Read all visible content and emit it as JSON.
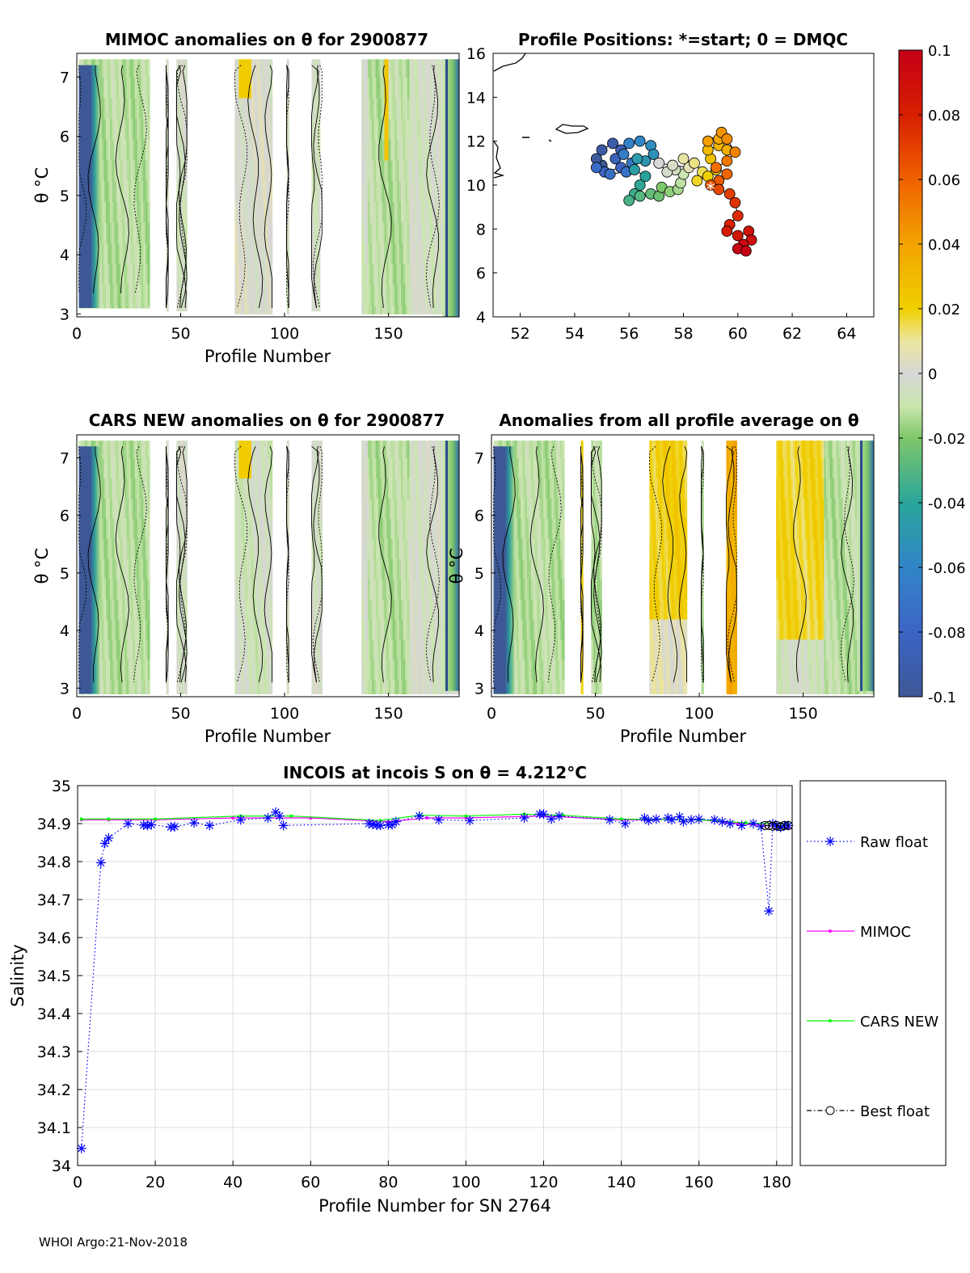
{
  "footer": "WHOI Argo:21-Nov-2018",
  "colors": {
    "raw": "#0000ff",
    "mimoc": "#ff00ff",
    "cars": "#00ff00",
    "best": "#000000",
    "grid": "#dcdcdc",
    "neutral": "#d6d6d6"
  },
  "panels": {
    "mimoc": {
      "title": "MIMOC anomalies on θ  for 2900877",
      "xlabel": "Profile Number",
      "ylabel": "θ °C",
      "xticks": [
        "0",
        "50",
        "100",
        "150"
      ],
      "yticks": [
        "3",
        "4",
        "5",
        "6",
        "7"
      ],
      "xlim": [
        0,
        184
      ],
      "ylim": [
        2.95,
        7.4
      ]
    },
    "positions": {
      "title": "Profile Positions: *=start; 0 = DMQC",
      "xticks": [
        "52",
        "54",
        "56",
        "58",
        "60",
        "62",
        "64"
      ],
      "yticks": [
        "4",
        "6",
        "8",
        "10",
        "12",
        "14",
        "16"
      ],
      "xlim": [
        51,
        65
      ],
      "ylim": [
        4,
        16
      ],
      "track": [
        [
          55.0,
          10.9
        ],
        [
          54.8,
          11.2
        ],
        [
          55.0,
          11.6
        ],
        [
          55.4,
          11.9
        ],
        [
          55.7,
          11.6
        ],
        [
          55.5,
          11.2
        ],
        [
          55.7,
          10.8
        ],
        [
          55.1,
          10.6
        ],
        [
          54.8,
          10.8
        ],
        [
          55.3,
          10.5
        ],
        [
          55.9,
          10.6
        ],
        [
          56.1,
          11.0
        ],
        [
          55.8,
          11.4
        ],
        [
          56.0,
          11.9
        ],
        [
          56.4,
          12.0
        ],
        [
          56.8,
          11.8
        ],
        [
          56.9,
          11.4
        ],
        [
          56.6,
          11.1
        ],
        [
          56.3,
          11.2
        ],
        [
          56.2,
          10.7
        ],
        [
          56.6,
          10.4
        ],
        [
          56.4,
          10.0
        ],
        [
          56.2,
          9.6
        ],
        [
          56.0,
          9.3
        ],
        [
          56.4,
          9.5
        ],
        [
          56.8,
          9.6
        ],
        [
          57.1,
          9.5
        ],
        [
          57.2,
          9.9
        ],
        [
          57.5,
          9.7
        ],
        [
          57.8,
          9.8
        ],
        [
          57.9,
          10.1
        ],
        [
          58.0,
          10.5
        ],
        [
          57.7,
          10.7
        ],
        [
          57.4,
          10.6
        ],
        [
          57.1,
          11.0
        ],
        [
          57.6,
          10.9
        ],
        [
          58.2,
          10.8
        ],
        [
          58.0,
          11.2
        ],
        [
          58.4,
          11.0
        ],
        [
          58.7,
          10.6
        ],
        [
          58.5,
          10.2
        ],
        [
          58.9,
          10.4
        ],
        [
          59.2,
          10.7
        ],
        [
          59.0,
          11.2
        ],
        [
          58.9,
          11.6
        ],
        [
          59.3,
          11.8
        ],
        [
          59.6,
          11.6
        ],
        [
          59.3,
          12.1
        ],
        [
          58.9,
          12.0
        ],
        [
          59.4,
          12.4
        ],
        [
          59.6,
          12.1
        ],
        [
          59.9,
          11.5
        ],
        [
          59.6,
          11.1
        ],
        [
          59.2,
          10.8
        ],
        [
          59.6,
          10.5
        ],
        [
          59.3,
          10.2
        ],
        [
          59.0,
          10.0
        ],
        [
          59.3,
          9.8
        ],
        [
          59.7,
          9.6
        ],
        [
          59.9,
          9.2
        ],
        [
          60.0,
          8.6
        ],
        [
          59.7,
          8.2
        ],
        [
          59.6,
          7.9
        ],
        [
          60.0,
          7.7
        ],
        [
          60.4,
          7.9
        ],
        [
          60.5,
          7.5
        ],
        [
          60.2,
          7.3
        ],
        [
          60.0,
          7.1
        ],
        [
          60.3,
          7.0
        ]
      ],
      "start": [
        59.0,
        10.0
      ]
    },
    "cars": {
      "title": "CARS NEW anomalies on θ for 2900877",
      "xlabel": "Profile Number",
      "ylabel": "θ °C",
      "xticks": [
        "0",
        "50",
        "100",
        "150"
      ],
      "yticks": [
        "3",
        "4",
        "5",
        "6",
        "7"
      ],
      "xlim": [
        0,
        184
      ],
      "ylim": [
        2.85,
        7.4
      ]
    },
    "average": {
      "title": "Anomalies from all profile average on θ",
      "xlabel": "Profile Number",
      "ylabel": "θ °C",
      "xticks": [
        "0",
        "50",
        "100",
        "150"
      ],
      "yticks": [
        "3",
        "4",
        "5",
        "6",
        "7"
      ],
      "xlim": [
        0,
        184
      ],
      "ylim": [
        2.85,
        7.4
      ]
    }
  },
  "colorbar": {
    "ticks": [
      "0.1",
      "0.08",
      "0.06",
      "0.04",
      "0.02",
      "0",
      "-0.02",
      "-0.04",
      "-0.06",
      "-0.08",
      "-0.1"
    ],
    "range": [
      -0.1,
      0.1
    ]
  },
  "chart_data": {
    "type": "line",
    "title": "INCOIS at incois S on θ = 4.212°C",
    "xlabel": "Profile Number for SN 2764",
    "ylabel": "Salinity",
    "xlim": [
      0,
      184
    ],
    "ylim": [
      34.0,
      35.0
    ],
    "xticks": [
      "0",
      "20",
      "40",
      "60",
      "80",
      "100",
      "120",
      "140",
      "160",
      "180"
    ],
    "yticks": [
      "34",
      "34.1",
      "34.2",
      "34.3",
      "34.4",
      "34.5",
      "34.6",
      "34.7",
      "34.8",
      "34.9",
      "35"
    ],
    "series": [
      {
        "name": "Raw float",
        "style": "dotted-star",
        "points": [
          [
            1,
            34.045
          ],
          [
            6,
            34.797
          ],
          [
            7,
            34.848
          ],
          [
            8,
            34.862
          ],
          [
            13,
            34.9
          ],
          [
            17,
            34.896
          ],
          [
            18,
            34.895
          ],
          [
            19,
            34.897
          ],
          [
            24,
            34.891
          ],
          [
            25,
            34.892
          ],
          [
            30,
            34.902
          ],
          [
            34,
            34.895
          ],
          [
            42,
            34.91
          ],
          [
            49,
            34.915
          ],
          [
            51,
            34.93
          ],
          [
            52,
            34.92
          ],
          [
            53,
            34.895
          ],
          [
            75,
            34.9
          ],
          [
            76,
            34.898
          ],
          [
            77,
            34.896
          ],
          [
            78,
            34.895
          ],
          [
            80,
            34.897
          ],
          [
            81,
            34.897
          ],
          [
            82,
            34.905
          ],
          [
            88,
            34.92
          ],
          [
            93,
            34.91
          ],
          [
            101,
            34.908
          ],
          [
            115,
            34.915
          ],
          [
            119,
            34.925
          ],
          [
            120,
            34.925
          ],
          [
            122,
            34.912
          ],
          [
            124,
            34.92
          ],
          [
            137,
            34.91
          ],
          [
            141,
            34.9
          ],
          [
            146,
            34.915
          ],
          [
            147,
            34.908
          ],
          [
            149,
            34.912
          ],
          [
            152,
            34.915
          ],
          [
            153,
            34.91
          ],
          [
            155,
            34.918
          ],
          [
            156,
            34.905
          ],
          [
            158,
            34.91
          ],
          [
            160,
            34.912
          ],
          [
            164,
            34.91
          ],
          [
            166,
            34.905
          ],
          [
            168,
            34.9
          ],
          [
            171,
            34.895
          ],
          [
            174,
            34.9
          ],
          [
            176,
            34.892
          ],
          [
            178,
            34.67
          ],
          [
            179,
            34.9
          ],
          [
            180,
            34.893
          ],
          [
            181,
            34.89
          ],
          [
            182,
            34.895
          ],
          [
            183,
            34.895
          ]
        ]
      },
      {
        "name": "MIMOC",
        "style": "solid-dot",
        "points": [
          [
            1,
            34.91
          ],
          [
            8,
            34.91
          ],
          [
            20,
            34.91
          ],
          [
            40,
            34.915
          ],
          [
            60,
            34.915
          ],
          [
            80,
            34.905
          ],
          [
            90,
            34.915
          ],
          [
            100,
            34.915
          ],
          [
            120,
            34.92
          ],
          [
            140,
            34.91
          ],
          [
            160,
            34.91
          ],
          [
            170,
            34.9
          ],
          [
            183,
            34.89
          ]
        ]
      },
      {
        "name": "CARS NEW",
        "style": "solid-dot",
        "points": [
          [
            1,
            34.912
          ],
          [
            8,
            34.912
          ],
          [
            20,
            34.912
          ],
          [
            42,
            34.92
          ],
          [
            55,
            34.92
          ],
          [
            78,
            34.908
          ],
          [
            88,
            34.922
          ],
          [
            100,
            34.92
          ],
          [
            115,
            34.925
          ],
          [
            125,
            34.922
          ],
          [
            140,
            34.912
          ],
          [
            160,
            34.91
          ],
          [
            172,
            34.902
          ],
          [
            183,
            34.898
          ]
        ]
      },
      {
        "name": "Best float",
        "style": "dashdot-circle",
        "points": [
          [
            177,
            34.895
          ],
          [
            178,
            34.895
          ],
          [
            179,
            34.893
          ],
          [
            180,
            34.895
          ],
          [
            181,
            34.892
          ],
          [
            182,
            34.895
          ],
          [
            183,
            34.895
          ]
        ]
      }
    ]
  }
}
